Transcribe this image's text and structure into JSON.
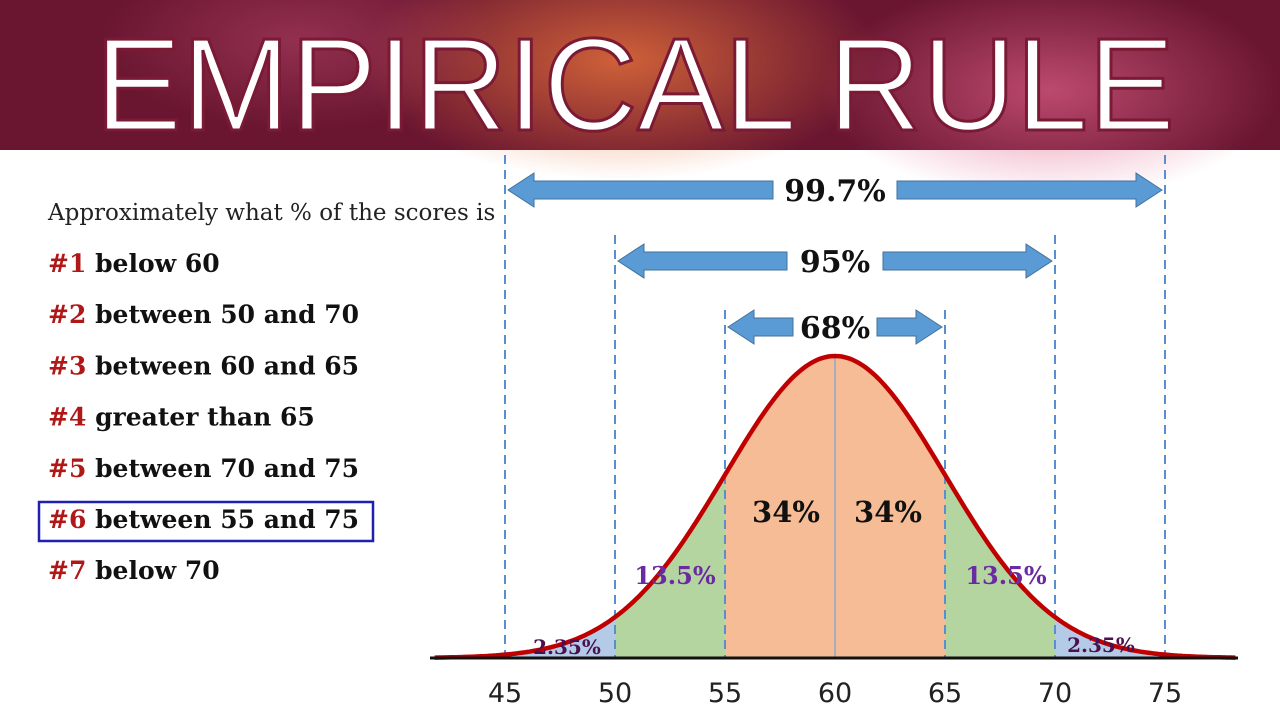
{
  "header": {
    "title": "EMPIRICAL RULE"
  },
  "question": {
    "prompt": "Approximately what % of the scores is",
    "items": [
      {
        "num": "#1",
        "text": "below 60"
      },
      {
        "num": "#2",
        "text": "between 50 and 70"
      },
      {
        "num": "#3",
        "text": "between 60 and 65"
      },
      {
        "num": "#4",
        "text": "greater than 65"
      },
      {
        "num": "#5",
        "text": "between 70 and 75"
      },
      {
        "num": "#6",
        "text": "between 55 and 75"
      },
      {
        "num": "#7",
        "text": "below 70"
      }
    ]
  },
  "diagram": {
    "axis_labels": [
      "45",
      "50",
      "55",
      "60",
      "65",
      "70",
      "75"
    ],
    "arrows": [
      "99.7%",
      "95%",
      "68%"
    ],
    "regions": {
      "outer": "2.35%",
      "middle": "13.5%",
      "center": "34%"
    }
  }
}
